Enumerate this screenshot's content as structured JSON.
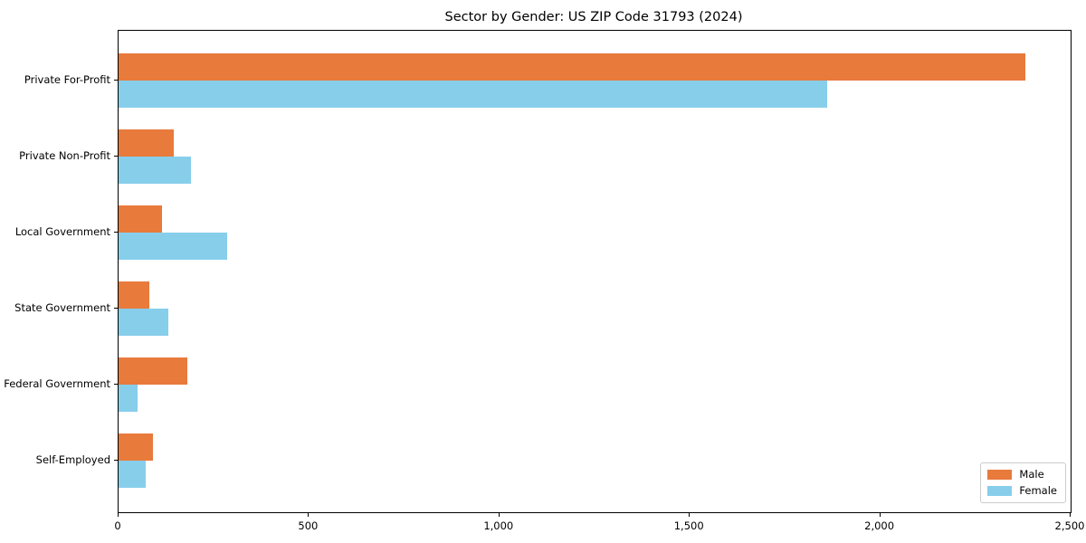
{
  "chart_data": {
    "type": "bar",
    "orientation": "horizontal",
    "title": "Sector by Gender: US ZIP Code 31793 (2024)",
    "categories": [
      "Private For-Profit",
      "Private Non-Profit",
      "Local Government",
      "State Government",
      "Federal Government",
      "Self-Employed"
    ],
    "series": [
      {
        "name": "Male",
        "color": "#E87A3C",
        "values": [
          2380,
          145,
          115,
          80,
          180,
          90
        ]
      },
      {
        "name": "Female",
        "color": "#87CEEB",
        "values": [
          1860,
          190,
          285,
          130,
          50,
          70
        ]
      }
    ],
    "xlabel": "",
    "ylabel": "",
    "xlim": [
      0,
      2500
    ],
    "xticks": [
      0,
      500,
      1000,
      1500,
      2000,
      2500
    ],
    "xtick_labels": [
      "0",
      "500",
      "1,000",
      "1,500",
      "2,000",
      "2,500"
    ],
    "grid": false,
    "legend_position": "lower right"
  },
  "colors": {
    "background": "#FFFFFF",
    "spine": "#000000",
    "text": "#000000",
    "legend_border": "#CCCCCC"
  }
}
